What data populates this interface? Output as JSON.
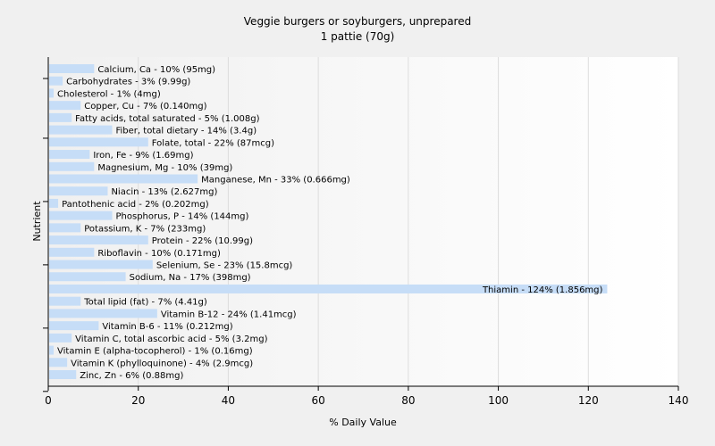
{
  "chart_data": {
    "type": "bar",
    "orientation": "horizontal",
    "title": "Veggie burgers or soyburgers, unprepared",
    "subtitle": "1 pattie (70g)",
    "xlabel": "% Daily Value",
    "ylabel": "Nutrient",
    "xlim": [
      0,
      140
    ],
    "xticks": [
      "0",
      "20",
      "40",
      "60",
      "80",
      "100",
      "120",
      "140"
    ],
    "grid": true,
    "legend": "none",
    "bar_color": "#c6ddf7",
    "categories": [
      "Calcium, Ca",
      "Carbohydrates",
      "Cholesterol",
      "Copper, Cu",
      "Fatty acids, total saturated",
      "Fiber, total dietary",
      "Folate, total",
      "Iron, Fe",
      "Magnesium, Mg",
      "Manganese, Mn",
      "Niacin",
      "Pantothenic acid",
      "Phosphorus, P",
      "Potassium, K",
      "Protein",
      "Riboflavin",
      "Selenium, Se",
      "Sodium, Na",
      "Thiamin",
      "Total lipid (fat)",
      "Vitamin B-12",
      "Vitamin B-6",
      "Vitamin C, total ascorbic acid",
      "Vitamin E (alpha-tocopherol)",
      "Vitamin K (phylloquinone)",
      "Zinc, Zn"
    ],
    "values": [
      10,
      3,
      1,
      7,
      5,
      14,
      22,
      9,
      10,
      33,
      13,
      2,
      14,
      7,
      22,
      10,
      23,
      17,
      124,
      7,
      24,
      11,
      5,
      1,
      4,
      6
    ],
    "labels": [
      "Calcium, Ca - 10% (95mg)",
      "Carbohydrates - 3% (9.99g)",
      "Cholesterol - 1% (4mg)",
      "Copper, Cu - 7% (0.140mg)",
      "Fatty acids, total saturated - 5% (1.008g)",
      "Fiber, total dietary - 14% (3.4g)",
      "Folate, total - 22% (87mcg)",
      "Iron, Fe - 9% (1.69mg)",
      "Magnesium, Mg - 10% (39mg)",
      "Manganese, Mn - 33% (0.666mg)",
      "Niacin - 13% (2.627mg)",
      "Pantothenic acid - 2% (0.202mg)",
      "Phosphorus, P - 14% (144mg)",
      "Potassium, K - 7% (233mg)",
      "Protein - 22% (10.99g)",
      "Riboflavin - 10% (0.171mg)",
      "Selenium, Se - 23% (15.8mcg)",
      "Sodium, Na - 17% (398mg)",
      "Thiamin - 124% (1.856mg)",
      "Total lipid (fat) - 7% (4.41g)",
      "Vitamin B-12 - 24% (1.41mcg)",
      "Vitamin B-6 - 11% (0.212mg)",
      "Vitamin C, total ascorbic acid - 5% (3.2mg)",
      "Vitamin E (alpha-tocopherol) - 1% (0.16mg)",
      "Vitamin K (phylloquinone) - 4% (2.9mcg)",
      "Zinc, Zn - 6% (0.88mg)"
    ]
  }
}
